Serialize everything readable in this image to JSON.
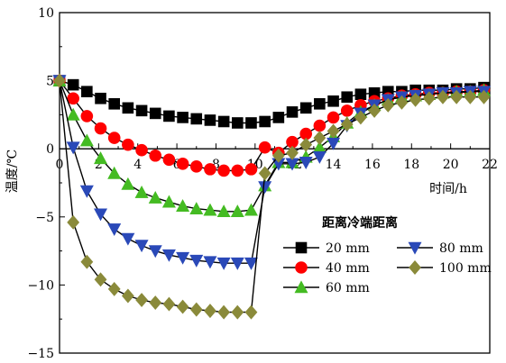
{
  "chart_data": {
    "type": "line",
    "title": "",
    "xlabel": "时间/h",
    "ylabel": "温度/℃",
    "xlim": [
      0,
      22
    ],
    "ylim": [
      -15,
      10
    ],
    "xticks": [
      "0",
      "2",
      "4",
      "6",
      "8",
      "10",
      "12",
      "14",
      "16",
      "18",
      "20",
      "22"
    ],
    "yticks": [
      "10",
      "5",
      "0",
      "−5",
      "−10",
      "−15"
    ],
    "grid": false,
    "legend": {
      "title": "距离冷端距离",
      "placement": "bottom-right"
    },
    "series": [
      {
        "name": "20 mm",
        "marker": "square",
        "color": "#000000",
        "x": [
          0,
          0.7,
          1.4,
          2.1,
          2.8,
          3.5,
          4.2,
          4.9,
          5.6,
          6.3,
          7.0,
          7.7,
          8.4,
          9.1,
          9.8,
          10.5,
          11.2,
          11.9,
          12.6,
          13.3,
          14.0,
          14.7,
          15.4,
          16.1,
          16.8,
          17.5,
          18.2,
          18.9,
          19.6,
          20.3,
          21.0,
          21.7
        ],
        "y": [
          5.0,
          4.7,
          4.2,
          3.7,
          3.3,
          3.0,
          2.8,
          2.6,
          2.4,
          2.3,
          2.2,
          2.1,
          2.0,
          1.9,
          1.9,
          2.0,
          2.3,
          2.7,
          3.0,
          3.3,
          3.5,
          3.8,
          4.0,
          4.1,
          4.2,
          4.2,
          4.3,
          4.3,
          4.3,
          4.4,
          4.4,
          4.5
        ]
      },
      {
        "name": "40 mm",
        "marker": "circle",
        "color": "#ff0000",
        "x": [
          0,
          0.7,
          1.4,
          2.1,
          2.8,
          3.5,
          4.2,
          4.9,
          5.6,
          6.3,
          7.0,
          7.7,
          8.4,
          9.1,
          9.8,
          10.5,
          11.2,
          11.9,
          12.6,
          13.3,
          14.0,
          14.7,
          15.4,
          16.1,
          16.8,
          17.5,
          18.2,
          18.9,
          19.6,
          20.3,
          21.0,
          21.7
        ],
        "y": [
          5.0,
          3.7,
          2.4,
          1.5,
          0.8,
          0.3,
          -0.1,
          -0.5,
          -0.8,
          -1.1,
          -1.3,
          -1.5,
          -1.6,
          -1.6,
          -1.5,
          0.1,
          -0.3,
          0.5,
          1.1,
          1.7,
          2.3,
          2.8,
          3.2,
          3.5,
          3.7,
          3.9,
          4.0,
          4.1,
          4.1,
          4.2,
          4.2,
          4.3
        ]
      },
      {
        "name": "60 mm",
        "marker": "triangle-up",
        "color": "#44bb22",
        "x": [
          0,
          0.7,
          1.4,
          2.1,
          2.8,
          3.5,
          4.2,
          4.9,
          5.6,
          6.3,
          7.0,
          7.7,
          8.4,
          9.1,
          9.8,
          10.5,
          11.2,
          11.9,
          12.6,
          13.3,
          14.0,
          14.7,
          15.4,
          16.1,
          16.8,
          17.5,
          18.2,
          18.9,
          19.6,
          20.3,
          21.0,
          21.7
        ],
        "y": [
          5.0,
          2.5,
          0.6,
          -0.7,
          -1.8,
          -2.6,
          -3.2,
          -3.6,
          -3.9,
          -4.2,
          -4.4,
          -4.5,
          -4.6,
          -4.6,
          -4.5,
          -2.7,
          -1.0,
          -1.0,
          -0.6,
          0.1,
          0.9,
          1.9,
          2.7,
          3.2,
          3.6,
          3.8,
          3.9,
          4.0,
          4.1,
          4.2,
          4.2,
          4.3
        ]
      },
      {
        "name": "80 mm",
        "marker": "triangle-down",
        "color": "#2a49b8",
        "x": [
          0,
          0.7,
          1.4,
          2.1,
          2.8,
          3.5,
          4.2,
          4.9,
          5.6,
          6.3,
          7.0,
          7.7,
          8.4,
          9.1,
          9.8,
          10.5,
          11.2,
          11.9,
          12.6,
          13.3,
          14.0,
          14.7,
          15.4,
          16.1,
          16.8,
          17.5,
          18.2,
          18.9,
          19.6,
          20.3,
          21.0,
          21.7
        ],
        "y": [
          5.0,
          0.1,
          -3.1,
          -4.8,
          -5.9,
          -6.6,
          -7.1,
          -7.5,
          -7.8,
          -8.0,
          -8.2,
          -8.3,
          -8.4,
          -8.4,
          -8.4,
          -2.8,
          -1.1,
          -1.1,
          -1.0,
          -0.6,
          0.4,
          1.7,
          2.6,
          3.2,
          3.6,
          3.8,
          3.9,
          4.0,
          4.1,
          4.1,
          4.2,
          4.2
        ]
      },
      {
        "name": "100 mm",
        "marker": "diamond",
        "color": "#8a8a3a",
        "x": [
          0,
          0.7,
          1.4,
          2.1,
          2.8,
          3.5,
          4.2,
          4.9,
          5.6,
          6.3,
          7.0,
          7.7,
          8.4,
          9.1,
          9.8,
          10.5,
          11.2,
          11.9,
          12.6,
          13.3,
          14.0,
          14.7,
          15.4,
          16.1,
          16.8,
          17.5,
          18.2,
          18.9,
          19.6,
          20.3,
          21.0,
          21.7
        ],
        "y": [
          5.0,
          -5.4,
          -8.3,
          -9.6,
          -10.3,
          -10.8,
          -11.1,
          -11.3,
          -11.4,
          -11.6,
          -11.8,
          -11.9,
          -12.0,
          -12.0,
          -12.0,
          -1.8,
          -0.5,
          -0.3,
          0.3,
          0.8,
          1.3,
          1.8,
          2.3,
          2.8,
          3.2,
          3.4,
          3.6,
          3.7,
          3.8,
          3.8,
          3.8,
          3.8
        ]
      }
    ]
  }
}
